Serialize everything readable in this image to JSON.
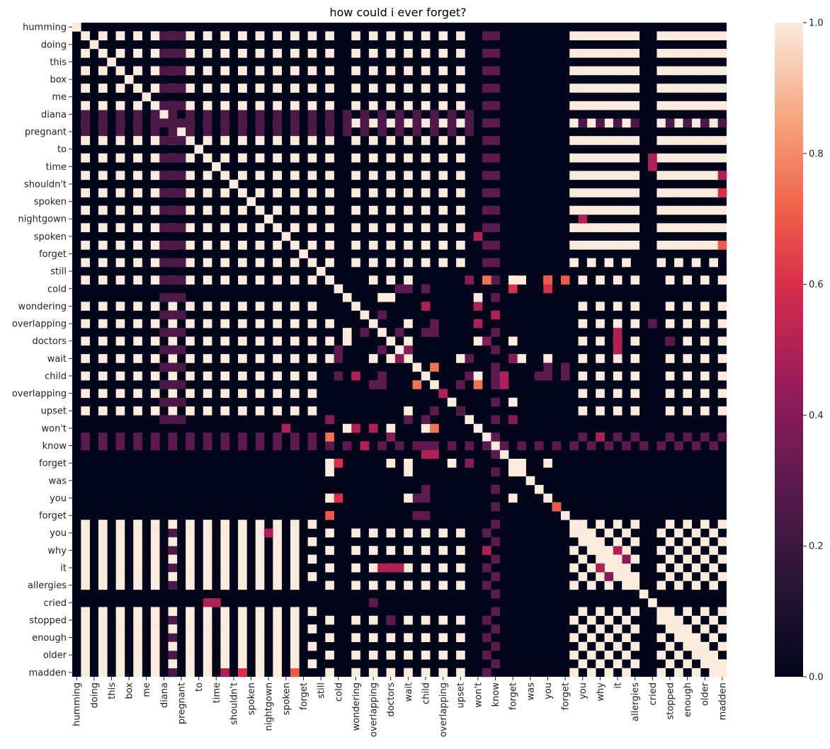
{
  "title": "how could i ever forget?",
  "chart_data": {
    "type": "heatmap",
    "title": "how could i ever forget?",
    "colormap": "rocket",
    "vmin": 0.0,
    "vmax": 1.0,
    "colorbar_ticks": [
      "0.0",
      "0.2",
      "0.4",
      "0.6",
      "0.8",
      "1.0"
    ],
    "colorbar_tick_values": [
      0.0,
      0.2,
      0.4,
      0.6,
      0.8,
      1.0
    ],
    "n_cells": 75,
    "y_tick_labels": [
      "humming",
      "doing",
      "this",
      "box",
      "me",
      "diana",
      "pregnant",
      "to",
      "time",
      "shouldn't",
      "spoken",
      "nightgown",
      "spoken",
      "forget",
      "still",
      "cold",
      "wondering",
      "overlapping",
      "doctors",
      "wait",
      "child",
      "overlapping",
      "upset",
      "won't",
      "know",
      "forget",
      "was",
      "you",
      "forget",
      "you",
      "why",
      "it",
      "allergies",
      "cried",
      "stopped",
      "enough",
      "older",
      "madden"
    ],
    "x_tick_labels": [
      "humming",
      "doing",
      "this",
      "box",
      "me",
      "diana",
      "pregnant",
      "to",
      "time",
      "shouldn't",
      "spoken",
      "nightgown",
      "spoken",
      "forget",
      "still",
      "cold",
      "wondering",
      "overlapping",
      "doctors",
      "wait",
      "child",
      "overlapping",
      "upset",
      "won't",
      "know",
      "forget",
      "was",
      "you",
      "forget",
      "you",
      "why",
      "it",
      "allergies",
      "cried",
      "stopped",
      "enough",
      "older",
      "madden"
    ],
    "grid": false,
    "legend": "colorbar-right"
  }
}
